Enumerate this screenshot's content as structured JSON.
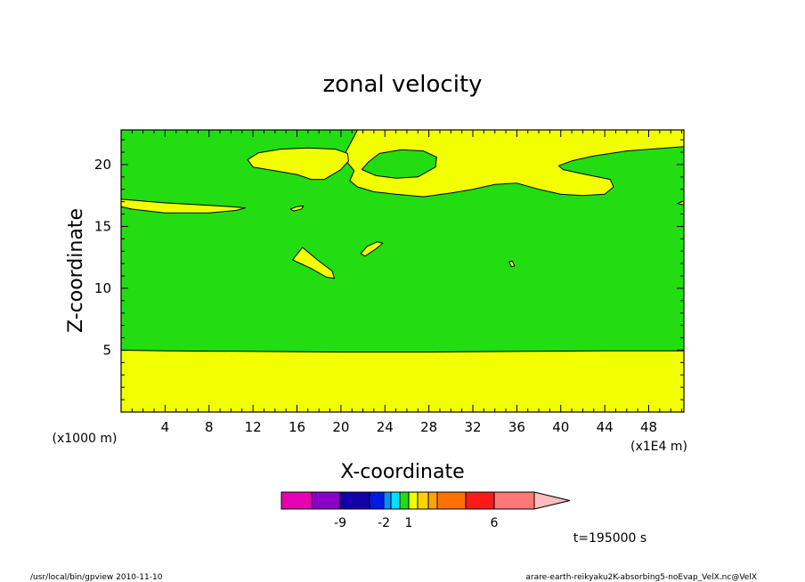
{
  "chart_data": {
    "type": "heatmap",
    "title": "zonal velocity",
    "xlabel": "X-coordinate",
    "ylabel": "Z-coordinate",
    "x_unit_label": "(x1E4 m)",
    "y_unit_label": "(x1000 m)",
    "xlim": [
      0,
      51.2
    ],
    "ylim": [
      0,
      22.8
    ],
    "x_ticks": [
      4,
      8,
      12,
      16,
      20,
      24,
      28,
      32,
      36,
      40,
      44,
      48
    ],
    "y_ticks": [
      5,
      10,
      15,
      20
    ],
    "time_label": "t=195000 s",
    "colors": {
      "green": "#22dd11",
      "yellow": "#f2ff00",
      "line": "#000000"
    },
    "regions": [
      {
        "name": "lower-layer",
        "level": "yellow",
        "points": [
          [
            0,
            0
          ],
          [
            51.2,
            0
          ],
          [
            51.2,
            4.95
          ],
          [
            44,
            4.95
          ],
          [
            36,
            4.9
          ],
          [
            28,
            4.85
          ],
          [
            20,
            4.85
          ],
          [
            12,
            4.9
          ],
          [
            4,
            4.95
          ],
          [
            0,
            5.0
          ]
        ]
      },
      {
        "name": "upper-band",
        "level": "yellow",
        "points": [
          [
            21.5,
            22.8
          ],
          [
            51.2,
            22.8
          ],
          [
            51.2,
            21.45
          ],
          [
            46,
            21.1
          ],
          [
            43,
            20.7
          ],
          [
            41,
            20.3
          ],
          [
            39.8,
            19.9
          ],
          [
            40.2,
            19.6
          ],
          [
            42,
            19.25
          ],
          [
            44.5,
            18.8
          ],
          [
            44.8,
            18.2
          ],
          [
            44,
            17.6
          ],
          [
            42,
            17.5
          ],
          [
            40,
            17.6
          ],
          [
            38,
            18.0
          ],
          [
            36,
            18.5
          ],
          [
            34,
            18.4
          ],
          [
            32,
            18.0
          ],
          [
            30,
            17.7
          ],
          [
            27.5,
            17.4
          ],
          [
            25,
            17.6
          ],
          [
            23,
            17.8
          ],
          [
            21.5,
            18.2
          ],
          [
            20.8,
            18.7
          ],
          [
            21.2,
            19.5
          ],
          [
            20.2,
            20.6
          ],
          [
            21.5,
            22.8
          ]
        ]
      },
      {
        "name": "upper-band-hole",
        "level": "green",
        "points": [
          [
            22.5,
            20.2
          ],
          [
            23.5,
            20.9
          ],
          [
            25.5,
            21.2
          ],
          [
            27.5,
            21.1
          ],
          [
            28.7,
            20.6
          ],
          [
            28.6,
            19.8
          ],
          [
            27,
            19.0
          ],
          [
            25,
            18.9
          ],
          [
            23.2,
            19.1
          ],
          [
            21.9,
            19.6
          ]
        ]
      },
      {
        "name": "left-bubble",
        "level": "yellow",
        "points": [
          [
            11.5,
            20.4
          ],
          [
            12.5,
            20.95
          ],
          [
            14.5,
            21.25
          ],
          [
            17,
            21.35
          ],
          [
            19.5,
            21.25
          ],
          [
            20.6,
            20.9
          ],
          [
            20.7,
            20.3
          ],
          [
            20,
            19.6
          ],
          [
            18.5,
            18.8
          ],
          [
            17.3,
            18.8
          ],
          [
            16,
            19.2
          ],
          [
            14,
            19.5
          ],
          [
            12,
            19.8
          ]
        ]
      },
      {
        "name": "left-tongue",
        "level": "yellow",
        "points": [
          [
            0,
            17.2
          ],
          [
            4,
            16.9
          ],
          [
            8,
            16.7
          ],
          [
            10,
            16.6
          ],
          [
            11.3,
            16.5
          ],
          [
            10.5,
            16.3
          ],
          [
            8,
            16.1
          ],
          [
            4,
            16.1
          ],
          [
            1,
            16.4
          ],
          [
            0,
            16.6
          ]
        ]
      },
      {
        "name": "small-patch-a",
        "level": "yellow",
        "points": [
          [
            15.4,
            16.4
          ],
          [
            16,
            16.6
          ],
          [
            16.6,
            16.65
          ],
          [
            16.4,
            16.4
          ],
          [
            15.7,
            16.25
          ]
        ]
      },
      {
        "name": "small-patch-b",
        "level": "yellow",
        "points": [
          [
            21.8,
            12.8
          ],
          [
            22.4,
            13.4
          ],
          [
            23.3,
            13.75
          ],
          [
            23.8,
            13.65
          ],
          [
            23.2,
            13.2
          ],
          [
            22.2,
            12.6
          ]
        ]
      },
      {
        "name": "diagonal-streak",
        "level": "yellow",
        "points": [
          [
            15.6,
            12.3
          ],
          [
            16.5,
            13.3
          ],
          [
            18,
            12.2
          ],
          [
            19.2,
            11.4
          ],
          [
            19.4,
            10.8
          ],
          [
            18.7,
            10.9
          ],
          [
            17.3,
            11.6
          ]
        ]
      },
      {
        "name": "tiny-speck",
        "level": "yellow",
        "points": [
          [
            35.3,
            12.15
          ],
          [
            35.6,
            12.2
          ],
          [
            35.8,
            11.8
          ],
          [
            35.5,
            11.75
          ]
        ]
      },
      {
        "name": "edge-speck",
        "level": "yellow",
        "points": [
          [
            51.2,
            16.75
          ],
          [
            50.6,
            16.85
          ],
          [
            51.2,
            17.05
          ]
        ]
      }
    ],
    "colorbar": {
      "tick_labels": [
        "-9",
        "-2",
        "1",
        "6"
      ],
      "swatches": [
        "#e800b0",
        "#8a00c8",
        "#1400a8",
        "#0018e8",
        "#0090ff",
        "#00e0ff",
        "#22dd11",
        "#f2ff00",
        "#ffd200",
        "#ffa400",
        "#ff7200",
        "#ff1a1a",
        "#ff7878",
        "#ffbcbc"
      ]
    },
    "footer_left": "/usr/local/bin/gpview   2010-11-10",
    "footer_right": "arare-earth-reikyaku2K-absorbing5-noEvap_VelX.nc@VelX"
  }
}
